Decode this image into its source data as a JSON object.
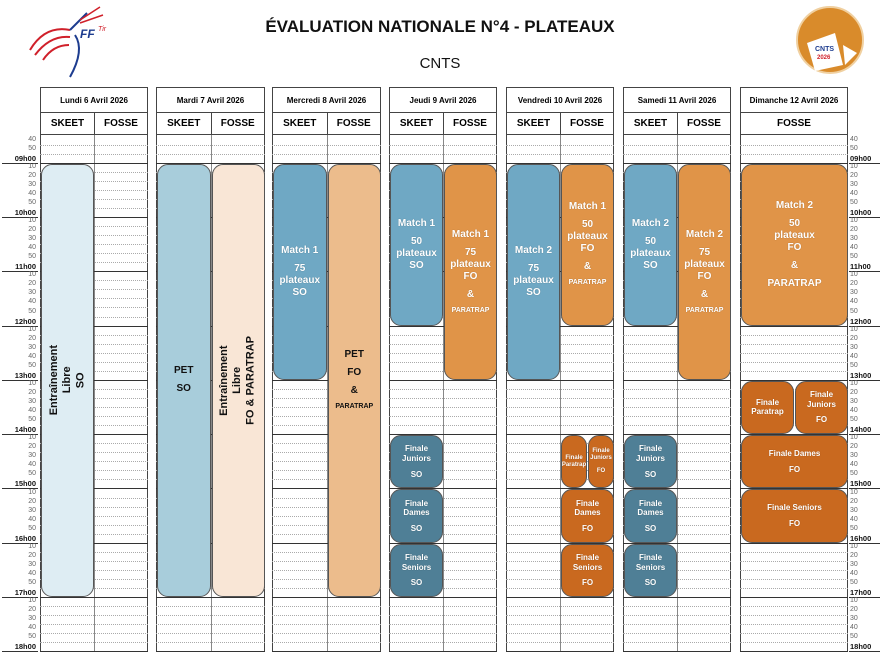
{
  "header": {
    "title": "ÉVALUATION NATIONALE N°4 - PLATEAUX",
    "subtitle": "CNTS",
    "logo_left_text": "FFTir",
    "logo_right_text": "CNTS 2026"
  },
  "colors": {
    "light_blue": "#deedf3",
    "pet_blue": "#a8cddb",
    "match_blue": "#6fa8c4",
    "final_blue": "#4f7f96",
    "light_orange": "#f9e6d6",
    "pet_orange": "#ecbc8c",
    "match_orange": "#e09448",
    "final_orange": "#c9691f"
  },
  "days": [
    {
      "label": "Lundi 6 Avril 2026",
      "disciplines": [
        "SKEET",
        "FOSSE"
      ]
    },
    {
      "label": "Mardi 7 Avril 2026",
      "disciplines": [
        "SKEET",
        "FOSSE"
      ]
    },
    {
      "label": "Mercredi 8 Avril 2026",
      "disciplines": [
        "SKEET",
        "FOSSE"
      ]
    },
    {
      "label": "Jeudi 9 Avril 2026",
      "disciplines": [
        "SKEET",
        "FOSSE"
      ]
    },
    {
      "label": "Vendredi 10 Avril 2026",
      "disciplines": [
        "SKEET",
        "FOSSE"
      ]
    },
    {
      "label": "Samedi 11 Avril 2026",
      "disciplines": [
        "SKEET",
        "FOSSE"
      ]
    },
    {
      "label": "Dimanche 12 Avril 2026",
      "disciplines": [
        "FOSSE"
      ]
    }
  ],
  "time_labels": [
    "40",
    "50",
    "09h00",
    "10",
    "20",
    "30",
    "40",
    "50",
    "10h00",
    "10",
    "20",
    "30",
    "40",
    "50",
    "11h00",
    "10",
    "20",
    "30",
    "40",
    "50",
    "12h00",
    "10",
    "20",
    "30",
    "40",
    "50",
    "13h00",
    "10",
    "20",
    "30",
    "40",
    "50",
    "14h00",
    "10",
    "20",
    "30",
    "40",
    "50",
    "15h00",
    "10",
    "20",
    "30",
    "40",
    "50",
    "16h00",
    "10",
    "20",
    "30",
    "40",
    "50",
    "17h00",
    "10",
    "20",
    "30",
    "40",
    "50",
    "18h00"
  ],
  "events": [
    {
      "day": 0,
      "discipline": "SKEET",
      "start": "09h00",
      "end": "17h00",
      "lines": [
        "Entraînement",
        "Libre",
        "SO"
      ],
      "color": "light_blue",
      "text": "dark",
      "vertical": true
    },
    {
      "day": 1,
      "discipline": "SKEET",
      "start": "09h00",
      "end": "17h00",
      "lines": [
        "PET",
        "SO"
      ],
      "color": "pet_blue",
      "text": "dark"
    },
    {
      "day": 1,
      "discipline": "FOSSE",
      "start": "09h00",
      "end": "17h00",
      "lines": [
        "Entraînement",
        "Libre",
        "FO & PARATRAP"
      ],
      "color": "light_orange",
      "text": "dark",
      "vertical": true
    },
    {
      "day": 2,
      "discipline": "SKEET",
      "start": "09h00",
      "end": "13h00",
      "lines": [
        "Match 1",
        "75",
        "plateaux",
        "SO"
      ],
      "color": "match_blue",
      "text": "light"
    },
    {
      "day": 2,
      "discipline": "FOSSE",
      "start": "09h00",
      "end": "17h00",
      "lines": [
        "PET",
        "FO",
        "&",
        "PARATRAP"
      ],
      "color": "pet_orange",
      "text": "dark"
    },
    {
      "day": 3,
      "discipline": "SKEET",
      "start": "09h00",
      "end": "12h00",
      "lines": [
        "Match 1",
        "50",
        "plateaux",
        "SO"
      ],
      "color": "match_blue",
      "text": "light"
    },
    {
      "day": 3,
      "discipline": "FOSSE",
      "start": "09h00",
      "end": "13h00",
      "lines": [
        "Match 1",
        "75",
        "plateaux",
        "FO",
        "&",
        "PARATRAP"
      ],
      "color": "match_orange",
      "text": "light"
    },
    {
      "day": 3,
      "discipline": "SKEET",
      "start": "14h00",
      "end": "15h00",
      "lines": [
        "Finale",
        "Juniors",
        "SO"
      ],
      "color": "final_blue",
      "text": "light"
    },
    {
      "day": 3,
      "discipline": "SKEET",
      "start": "15h00",
      "end": "16h00",
      "lines": [
        "Finale",
        "Dames",
        "SO"
      ],
      "color": "final_blue",
      "text": "light"
    },
    {
      "day": 3,
      "discipline": "SKEET",
      "start": "16h00",
      "end": "17h00",
      "lines": [
        "Finale",
        "Seniors",
        "SO"
      ],
      "color": "final_blue",
      "text": "light"
    },
    {
      "day": 4,
      "discipline": "SKEET",
      "start": "09h00",
      "end": "13h00",
      "lines": [
        "Match 2",
        "75",
        "plateaux",
        "SO"
      ],
      "color": "match_blue",
      "text": "light"
    },
    {
      "day": 4,
      "discipline": "FOSSE",
      "start": "09h00",
      "end": "12h00",
      "lines": [
        "Match 1",
        "50",
        "plateaux",
        "FO",
        "&",
        "PARATRAP"
      ],
      "color": "match_orange",
      "text": "light"
    },
    {
      "day": 4,
      "discipline": "FOSSE",
      "start": "14h00",
      "end": "15h00",
      "lines": [
        "Finale",
        "Paratrap"
      ],
      "color": "final_orange",
      "text": "light",
      "split": "left"
    },
    {
      "day": 4,
      "discipline": "FOSSE",
      "start": "14h00",
      "end": "15h00",
      "lines": [
        "Finale",
        "Juniors",
        "FO"
      ],
      "color": "final_orange",
      "text": "light",
      "split": "right"
    },
    {
      "day": 4,
      "discipline": "FOSSE",
      "start": "15h00",
      "end": "16h00",
      "lines": [
        "Finale",
        "Dames",
        "FO"
      ],
      "color": "final_orange",
      "text": "light"
    },
    {
      "day": 4,
      "discipline": "FOSSE",
      "start": "16h00",
      "end": "17h00",
      "lines": [
        "Finale",
        "Seniors",
        "FO"
      ],
      "color": "final_orange",
      "text": "light"
    },
    {
      "day": 5,
      "discipline": "SKEET",
      "start": "09h00",
      "end": "12h00",
      "lines": [
        "Match 2",
        "50",
        "plateaux",
        "SO"
      ],
      "color": "match_blue",
      "text": "light"
    },
    {
      "day": 5,
      "discipline": "FOSSE",
      "start": "09h00",
      "end": "13h00",
      "lines": [
        "Match 2",
        "75",
        "plateaux",
        "FO",
        "&",
        "PARATRAP"
      ],
      "color": "match_orange",
      "text": "light"
    },
    {
      "day": 5,
      "discipline": "SKEET",
      "start": "14h00",
      "end": "15h00",
      "lines": [
        "Finale",
        "Juniors",
        "SO"
      ],
      "color": "final_blue",
      "text": "light"
    },
    {
      "day": 5,
      "discipline": "SKEET",
      "start": "15h00",
      "end": "16h00",
      "lines": [
        "Finale",
        "Dames",
        "SO"
      ],
      "color": "final_blue",
      "text": "light"
    },
    {
      "day": 5,
      "discipline": "SKEET",
      "start": "16h00",
      "end": "17h00",
      "lines": [
        "Finale",
        "Seniors",
        "SO"
      ],
      "color": "final_blue",
      "text": "light"
    },
    {
      "day": 6,
      "discipline": "FOSSE",
      "start": "09h00",
      "end": "12h00",
      "lines": [
        "Match 2",
        "50",
        "plateaux",
        "FO",
        "&",
        "PARATRAP"
      ],
      "color": "match_orange",
      "text": "light"
    },
    {
      "day": 6,
      "discipline": "FOSSE",
      "start": "13h00",
      "end": "14h00",
      "lines": [
        "Finale",
        "Paratrap"
      ],
      "color": "final_orange",
      "text": "light",
      "split": "left"
    },
    {
      "day": 6,
      "discipline": "FOSSE",
      "start": "13h00",
      "end": "14h00",
      "lines": [
        "Finale",
        "Juniors",
        "FO"
      ],
      "color": "final_orange",
      "text": "light",
      "split": "right"
    },
    {
      "day": 6,
      "discipline": "FOSSE",
      "start": "14h00",
      "end": "15h00",
      "lines": [
        "Finale Dames",
        "FO"
      ],
      "color": "final_orange",
      "text": "light"
    },
    {
      "day": 6,
      "discipline": "FOSSE",
      "start": "15h00",
      "end": "16h00",
      "lines": [
        "Finale Seniors",
        "FO"
      ],
      "color": "final_orange",
      "text": "light"
    }
  ]
}
